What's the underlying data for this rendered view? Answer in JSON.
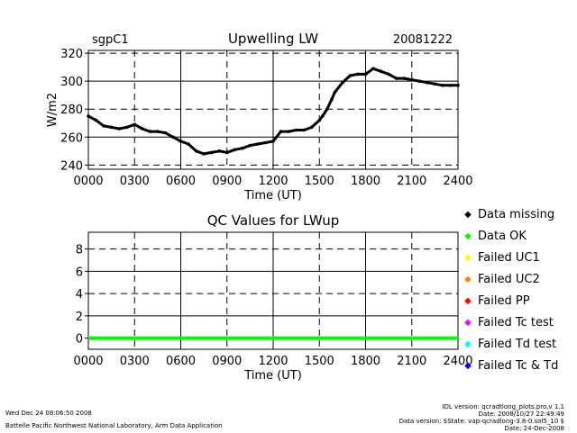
{
  "chart_data": [
    {
      "type": "line",
      "site": "sgpC1",
      "title": "Upwelling LW",
      "date": "20081222",
      "xlabel": "Time (UT)",
      "ylabel": "W/m2",
      "xlim": [
        0,
        24
      ],
      "ylim": [
        237,
        322
      ],
      "yticks": [
        240,
        260,
        280,
        300,
        320
      ],
      "xtick_labels": [
        "0000",
        "0300",
        "0600",
        "0900",
        "1200",
        "1500",
        "1800",
        "2100",
        "2400"
      ],
      "grid": "dashed",
      "series": [
        {
          "x": [
            0,
            0.5,
            1,
            1.5,
            2,
            2.5,
            3,
            3.5,
            4,
            4.5,
            5,
            5.5,
            6,
            6.5,
            7,
            7.5,
            8,
            8.5,
            9,
            9.5,
            10,
            10.5,
            11,
            11.5,
            12,
            12.5,
            13,
            13.5,
            14,
            14.5,
            15,
            15.2,
            15.5,
            15.8,
            16,
            16.5,
            17,
            17.5,
            18,
            18.5,
            19,
            19.5,
            20,
            20.5,
            21,
            21.5,
            22,
            22.5,
            23,
            23.5,
            24
          ],
          "y": [
            275,
            272,
            268,
            267,
            266,
            267,
            269,
            266,
            264,
            264,
            263,
            260,
            257,
            255,
            250,
            248,
            249,
            250,
            249,
            251,
            252,
            254,
            255,
            256,
            257,
            264,
            264,
            265,
            265,
            267,
            272,
            275,
            280,
            287,
            292,
            299,
            304,
            305,
            305,
            309,
            307,
            305,
            302,
            302,
            301,
            300,
            299,
            298,
            297,
            297,
            297
          ]
        }
      ]
    },
    {
      "type": "line",
      "title": "QC Values for LWup",
      "xlabel": "Time (UT)",
      "ylabel": "",
      "xlim": [
        0,
        24
      ],
      "ylim": [
        -1,
        9.5
      ],
      "yticks": [
        0,
        2,
        4,
        6,
        8
      ],
      "xtick_labels": [
        "0000",
        "0300",
        "0600",
        "0900",
        "1200",
        "1500",
        "1800",
        "2100",
        "2400"
      ],
      "grid": "dashed",
      "series": [
        {
          "name": "Data OK",
          "x": [
            0,
            24
          ],
          "y": [
            0,
            0
          ]
        }
      ]
    }
  ],
  "legend": [
    {
      "symbol": "◆",
      "label": "Data missing",
      "color": "#000000"
    },
    {
      "symbol": "◆",
      "label": "Data OK",
      "color": "#00ff00"
    },
    {
      "symbol": "◆",
      "label": "Failed UC1",
      "color": "#ffff00"
    },
    {
      "symbol": "◆",
      "label": "Failed UC2",
      "color": "#ff8800"
    },
    {
      "symbol": "◆",
      "label": "Failed PP",
      "color": "#ff0000"
    },
    {
      "symbol": "◆",
      "label": "Failed Tc test",
      "color": "#ff00ff"
    },
    {
      "symbol": "◆",
      "label": "Failed Td test",
      "color": "#00ffff"
    },
    {
      "symbol": "◆",
      "label": "Failed Tc & Td",
      "color": "#0000ff"
    }
  ],
  "footer": {
    "timestamp": "Wed Dec 24 08:06:50 2008",
    "org": "Battelle Pacific Northwest National Laboratory, Arm Data Application",
    "idl_version": "IDL version: qcradtlong_plots.pro,v 1.1",
    "version_date": "Date: 2008/10/27 22:49:49",
    "data_version": "Data version: $State: vap-qcradlong-3.8-0.sol5_10 $",
    "data_date": "Date: 24-Dec-2008"
  }
}
